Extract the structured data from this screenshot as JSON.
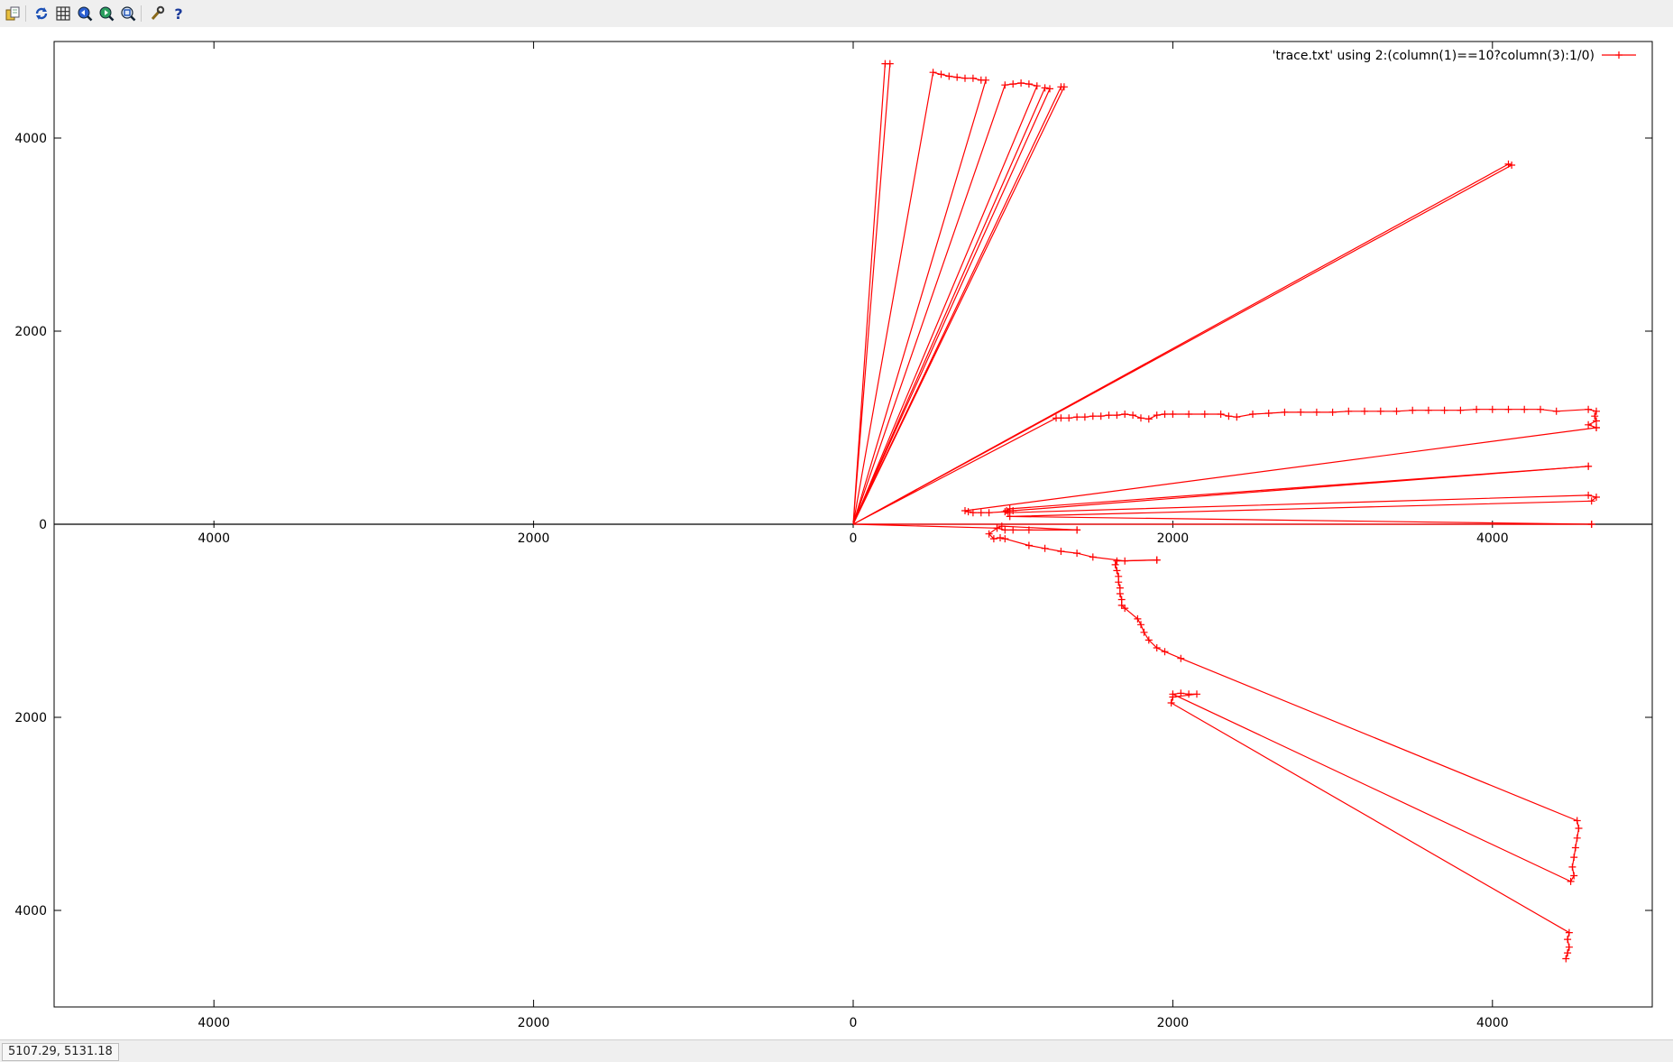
{
  "toolbar": {
    "buttons": [
      {
        "icon": "copy-to-clipboard-icon"
      },
      {
        "icon": "replot-icon"
      },
      {
        "icon": "grid-icon"
      },
      {
        "icon": "previous-zoom-icon"
      },
      {
        "icon": "next-zoom-icon"
      },
      {
        "icon": "autoscale-icon"
      },
      {
        "icon": "options-icon"
      },
      {
        "icon": "help-icon"
      }
    ]
  },
  "status": {
    "mouse_coords": "5107.29, 5131.18"
  },
  "colors": {
    "series": "#ff0000",
    "axis": "#000000",
    "background": "#ffffff"
  },
  "chart_data": {
    "type": "line",
    "title": "",
    "xlabel": "",
    "ylabel": "",
    "xlim": [
      -5000,
      5000
    ],
    "ylim": [
      -5000,
      5000
    ],
    "x_tick_labels": [
      "4000",
      "2000",
      "0",
      "2000",
      "4000"
    ],
    "y_tick_labels": [
      "4000",
      "2000",
      "0",
      "2000",
      "4000"
    ],
    "x_tick_values": [
      -4000,
      -2000,
      0,
      2000,
      4000
    ],
    "y_tick_values": [
      4000,
      2000,
      0,
      -2000,
      -4000
    ],
    "x_tick_labels_left": [
      "4000",
      "2000",
      "0",
      "2000",
      "4000"
    ],
    "x_tick_labels_right": [
      "4000",
      "2000",
      "0",
      "2000",
      "4000"
    ],
    "grid": false,
    "legend_position": "top-right",
    "series": [
      {
        "name": "'trace.txt' using 2:(column(1)==10?column(3):1/0)",
        "marker": "plus",
        "segments": [
          [
            [
              0,
              0
            ],
            [
              200,
              4770
            ],
            [
              230,
              4770
            ],
            [
              0,
              0
            ]
          ],
          [
            [
              0,
              0
            ],
            [
              500,
              4680
            ],
            [
              550,
              4660
            ],
            [
              600,
              4640
            ],
            [
              650,
              4630
            ],
            [
              700,
              4620
            ],
            [
              750,
              4620
            ],
            [
              800,
              4600
            ],
            [
              830,
              4600
            ],
            [
              0,
              0
            ]
          ],
          [
            [
              0,
              0
            ],
            [
              950,
              4550
            ],
            [
              1000,
              4560
            ],
            [
              1050,
              4570
            ],
            [
              1100,
              4560
            ],
            [
              1150,
              4540
            ],
            [
              0,
              0
            ]
          ],
          [
            [
              0,
              0
            ],
            [
              1300,
              4530
            ],
            [
              1320,
              4530
            ],
            [
              0,
              0
            ]
          ],
          [
            [
              0,
              0
            ],
            [
              1200,
              4520
            ],
            [
              1230,
              4510
            ],
            [
              0,
              0
            ]
          ],
          [
            [
              0,
              0
            ],
            [
              4100,
              3730
            ],
            [
              4120,
              3720
            ],
            [
              0,
              0
            ]
          ],
          [
            [
              0,
              0
            ],
            [
              1270,
              1100
            ],
            [
              1300,
              1100
            ],
            [
              1350,
              1100
            ],
            [
              1400,
              1110
            ],
            [
              1450,
              1110
            ],
            [
              1500,
              1120
            ],
            [
              1550,
              1120
            ],
            [
              1600,
              1130
            ],
            [
              1650,
              1130
            ],
            [
              1700,
              1140
            ],
            [
              1750,
              1130
            ],
            [
              1800,
              1100
            ],
            [
              1850,
              1090
            ],
            [
              1900,
              1130
            ],
            [
              1950,
              1140
            ],
            [
              2000,
              1140
            ],
            [
              2100,
              1140
            ],
            [
              2200,
              1140
            ],
            [
              2300,
              1140
            ],
            [
              2350,
              1120
            ],
            [
              2400,
              1110
            ],
            [
              2500,
              1140
            ],
            [
              2600,
              1150
            ],
            [
              2700,
              1160
            ],
            [
              2800,
              1160
            ],
            [
              2900,
              1160
            ],
            [
              3000,
              1160
            ],
            [
              3100,
              1170
            ],
            [
              3200,
              1170
            ],
            [
              3300,
              1170
            ],
            [
              3400,
              1170
            ],
            [
              3500,
              1180
            ],
            [
              3600,
              1180
            ],
            [
              3700,
              1180
            ],
            [
              3800,
              1180
            ],
            [
              3900,
              1190
            ],
            [
              4000,
              1190
            ],
            [
              4100,
              1190
            ],
            [
              4200,
              1190
            ],
            [
              4300,
              1190
            ],
            [
              4400,
              1170
            ],
            [
              4600,
              1190
            ],
            [
              4650,
              1170
            ],
            [
              4640,
              1120
            ],
            [
              4650,
              1070
            ],
            [
              4600,
              1030
            ],
            [
              4650,
              1000
            ]
          ],
          [
            [
              4650,
              1000
            ],
            [
              700,
              140
            ],
            [
              720,
              130
            ],
            [
              750,
              120
            ],
            [
              800,
              120
            ],
            [
              850,
              120
            ],
            [
              950,
              130
            ],
            [
              1000,
              140
            ],
            [
              4600,
              600
            ]
          ],
          [
            [
              4600,
              600
            ],
            [
              980,
              160
            ],
            [
              960,
              140
            ],
            [
              970,
              120
            ],
            [
              4600,
              300
            ],
            [
              4650,
              280
            ],
            [
              4620,
              240
            ],
            [
              980,
              80
            ],
            [
              4620,
              0
            ]
          ],
          [
            [
              4620,
              0
            ],
            [
              0,
              0
            ],
            [
              900,
              -40
            ],
            [
              950,
              -60
            ],
            [
              1000,
              -60
            ],
            [
              1100,
              -60
            ],
            [
              1400,
              -60
            ]
          ],
          [
            [
              1400,
              -60
            ],
            [
              930,
              -20
            ],
            [
              900,
              -40
            ],
            [
              850,
              -100
            ],
            [
              880,
              -150
            ],
            [
              920,
              -140
            ],
            [
              950,
              -150
            ],
            [
              1100,
              -220
            ],
            [
              1200,
              -250
            ],
            [
              1300,
              -280
            ],
            [
              1400,
              -300
            ],
            [
              1500,
              -340
            ],
            [
              1700,
              -380
            ],
            [
              1900,
              -370
            ]
          ],
          [
            [
              1900,
              -370
            ],
            [
              1650,
              -380
            ],
            [
              1640,
              -420
            ],
            [
              1650,
              -480
            ],
            [
              1660,
              -540
            ],
            [
              1660,
              -600
            ],
            [
              1670,
              -660
            ],
            [
              1670,
              -720
            ],
            [
              1680,
              -780
            ],
            [
              1680,
              -840
            ],
            [
              1700,
              -870
            ],
            [
              1780,
              -980
            ],
            [
              1800,
              -1040
            ],
            [
              1820,
              -1120
            ],
            [
              1850,
              -1200
            ],
            [
              1900,
              -1280
            ],
            [
              1950,
              -1320
            ],
            [
              2050,
              -1390
            ],
            [
              4530,
              -3070
            ],
            [
              4540,
              -3150
            ],
            [
              4530,
              -3250
            ],
            [
              4520,
              -3350
            ],
            [
              4510,
              -3450
            ],
            [
              4500,
              -3550
            ],
            [
              4510,
              -3640
            ],
            [
              4490,
              -3700
            ],
            [
              2000,
              -1760
            ],
            [
              2050,
              -1750
            ],
            [
              2100,
              -1760
            ],
            [
              2150,
              -1760
            ],
            [
              2000,
              -1790
            ],
            [
              1990,
              -1850
            ],
            [
              4480,
              -4230
            ],
            [
              4470,
              -4300
            ],
            [
              4480,
              -4380
            ],
            [
              4470,
              -4440
            ],
            [
              4460,
              -4500
            ]
          ]
        ]
      }
    ]
  }
}
